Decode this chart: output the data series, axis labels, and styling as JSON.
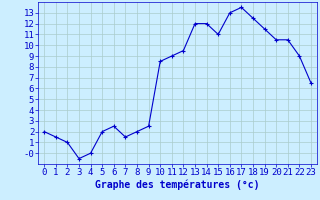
{
  "x": [
    0,
    1,
    2,
    3,
    4,
    5,
    6,
    7,
    8,
    9,
    10,
    11,
    12,
    13,
    14,
    15,
    16,
    17,
    18,
    19,
    20,
    21,
    22,
    23
  ],
  "y": [
    2,
    1.5,
    1,
    -0.5,
    0,
    2,
    2.5,
    1.5,
    2,
    2.5,
    8.5,
    9,
    9.5,
    12,
    12,
    11,
    13,
    13.5,
    12.5,
    11.5,
    10.5,
    10.5,
    9,
    6.5
  ],
  "line_color": "#0000cc",
  "marker": "+",
  "marker_color": "#0000cc",
  "bg_color": "#cceeff",
  "grid_color": "#aacccc",
  "xlabel": "Graphe des températures (°c)",
  "xlabel_color": "#0000cc",
  "xlabel_fontsize": 7,
  "tick_color": "#0000cc",
  "tick_fontsize": 6.5,
  "ylim": [
    -1,
    14
  ],
  "xlim": [
    -0.5,
    23.5
  ],
  "yticks": [
    0,
    1,
    2,
    3,
    4,
    5,
    6,
    7,
    8,
    9,
    10,
    11,
    12,
    13
  ],
  "xticks": [
    0,
    1,
    2,
    3,
    4,
    5,
    6,
    7,
    8,
    9,
    10,
    11,
    12,
    13,
    14,
    15,
    16,
    17,
    18,
    19,
    20,
    21,
    22,
    23
  ],
  "xtick_labels": [
    "0",
    "1",
    "2",
    "3",
    "4",
    "5",
    "6",
    "7",
    "8",
    "9",
    "10",
    "11",
    "12",
    "13",
    "14",
    "15",
    "16",
    "17",
    "18",
    "19",
    "20",
    "21",
    "22",
    "23"
  ]
}
